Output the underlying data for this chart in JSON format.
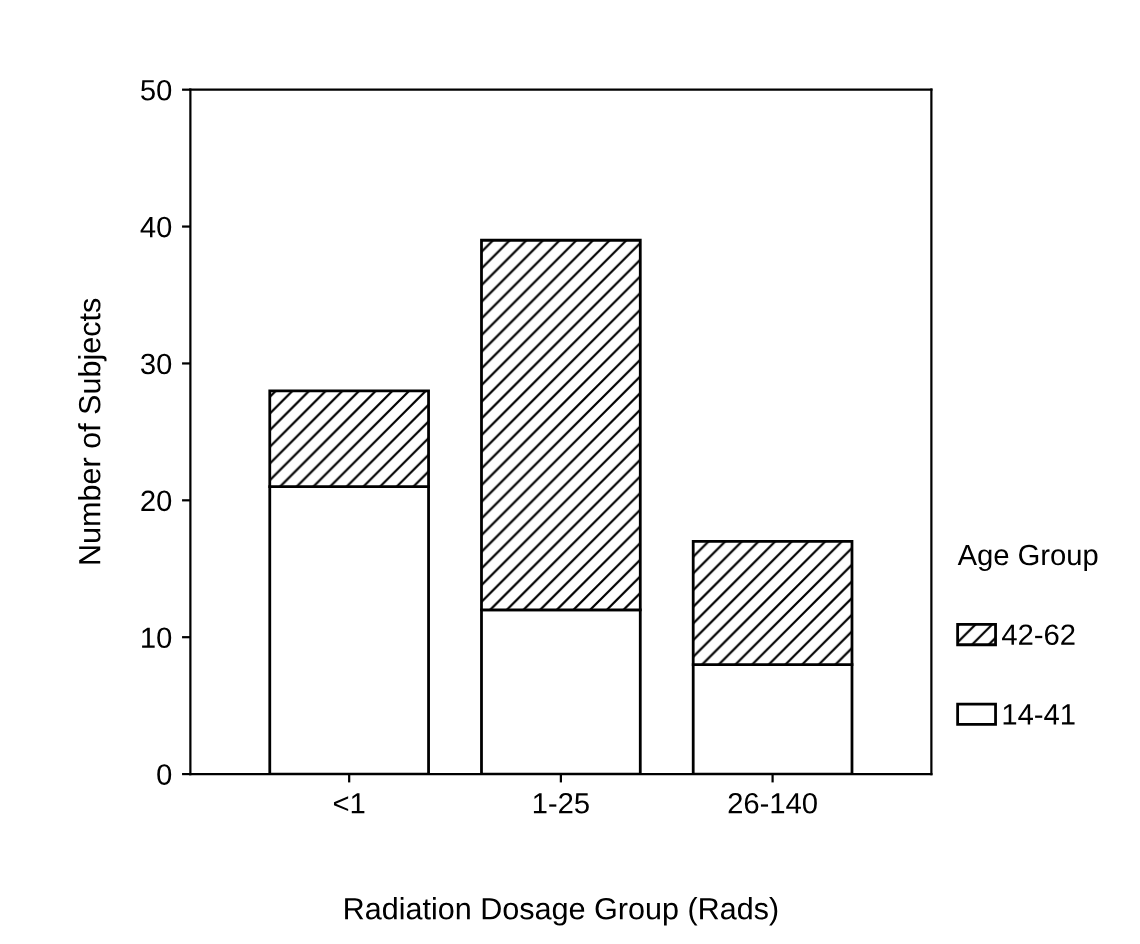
{
  "chart_data": {
    "type": "bar",
    "stacked": true,
    "xlabel": "Radiation Dosage Group (Rads)",
    "ylabel": "Number of Subjects",
    "legend_title": "Age Group",
    "categories": [
      "<1",
      "1-25",
      "26-140"
    ],
    "series": [
      {
        "name": "14-41",
        "color": "#ffffff",
        "values": [
          21,
          12,
          8
        ]
      },
      {
        "name": "42-62",
        "color": "#000000",
        "values": [
          7,
          27,
          9
        ]
      }
    ],
    "ylim": [
      0,
      50
    ],
    "yticks": [
      0,
      10,
      20,
      30,
      40,
      50
    ],
    "grid": false,
    "legend": "right"
  }
}
